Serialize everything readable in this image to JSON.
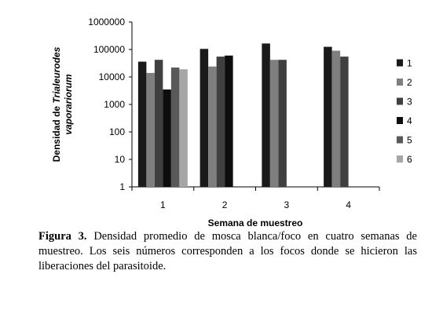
{
  "chart_data": {
    "type": "bar",
    "y_scale": "log",
    "ylim": [
      1,
      1000000
    ],
    "y_ticks": [
      "1",
      "10",
      "100",
      "1000",
      "10000",
      "100000",
      "1000000"
    ],
    "categories": [
      "1",
      "2",
      "3",
      "4"
    ],
    "xlabel": "Semana de muestreo",
    "ylabel_line1_prefix": "Densidad de ",
    "ylabel_line1_italic": "Trialeurodes",
    "ylabel_line2_italic": "vaporariorum",
    "legend_position": "right",
    "series": [
      {
        "name": "1",
        "color": "#1a1a1a",
        "values": [
          36000,
          105000,
          165000,
          125000
        ]
      },
      {
        "name": "2",
        "color": "#7f7f7f",
        "values": [
          14000,
          24000,
          42000,
          90000
        ]
      },
      {
        "name": "3",
        "color": "#404040",
        "values": [
          42000,
          55000,
          42000,
          55000
        ]
      },
      {
        "name": "4",
        "color": "#0d0d0d",
        "values": [
          3500,
          60000,
          null,
          null
        ]
      },
      {
        "name": "5",
        "color": "#595959",
        "values": [
          22000,
          null,
          null,
          null
        ]
      },
      {
        "name": "6",
        "color": "#a6a6a6",
        "values": [
          19000,
          null,
          null,
          null
        ]
      }
    ]
  },
  "caption": {
    "label": "Figura 3.",
    "text": " Densidad promedio de mosca blanca/foco en cuatro semanas de muestreo. Los seis números corresponden a los focos donde se hicieron las liberaciones del parasitoide."
  }
}
